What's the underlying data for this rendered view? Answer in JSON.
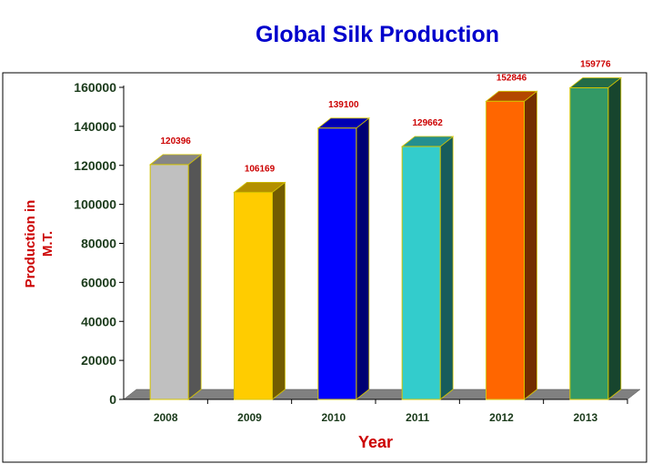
{
  "chart_data": {
    "type": "bar",
    "title": "Global Silk Production",
    "xlabel": "Year",
    "ylabel": "Production in M.T.",
    "categories": [
      "2008",
      "2009",
      "2010",
      "2011",
      "2012",
      "2013"
    ],
    "values": [
      120396,
      106169,
      139100,
      129662,
      152846,
      159776
    ],
    "value_labels": [
      "120396",
      "106169",
      "139100",
      "129662",
      "152846",
      "159776"
    ],
    "y_ticks": [
      0,
      20000,
      40000,
      60000,
      80000,
      100000,
      120000,
      140000,
      160000
    ],
    "ylim": [
      0,
      160000
    ],
    "grid": false,
    "legend": "none",
    "style": "3d-bars",
    "colors": {
      "title": "#0000cc",
      "axis_label": "#cc0000",
      "value_label": "#cc0000",
      "tick_label": "#1a3a1a",
      "bar_outline": "#d4c400",
      "floor": "#808080",
      "bars": [
        "#c0c0c0",
        "#ffcc00",
        "#0000ff",
        "#33cccc",
        "#ff6600",
        "#339966"
      ]
    }
  }
}
